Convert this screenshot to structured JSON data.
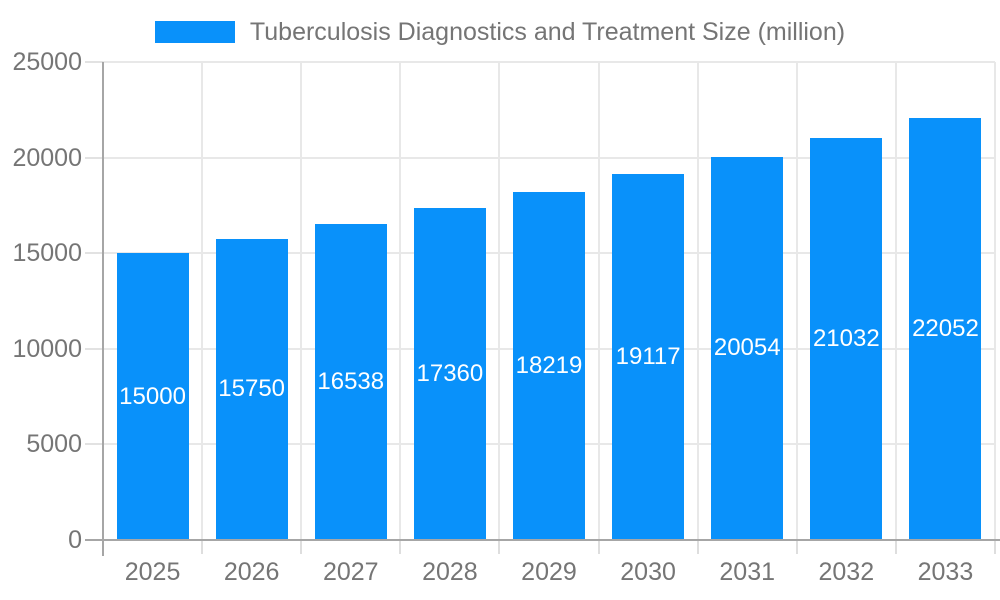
{
  "legend": {
    "label": "Tuberculosis Diagnostics and Treatment Size (million)",
    "swatch_color": "#0991fa"
  },
  "chart_data": {
    "type": "bar",
    "title": "Tuberculosis Diagnostics and Treatment Size (million)",
    "categories": [
      "2025",
      "2026",
      "2027",
      "2028",
      "2029",
      "2030",
      "2031",
      "2032",
      "2033"
    ],
    "values": [
      15000,
      15750,
      16538,
      17360,
      18219,
      19117,
      20054,
      21032,
      22052
    ],
    "series": [
      {
        "name": "Tuberculosis Diagnostics and Treatment Size (million)",
        "values": [
          15000,
          15750,
          16538,
          17360,
          18219,
          19117,
          20054,
          21032,
          22052
        ]
      }
    ],
    "xlabel": "",
    "ylabel": "",
    "ylim": [
      0,
      25000
    ],
    "yticks": [
      0,
      5000,
      10000,
      15000,
      20000,
      25000
    ],
    "grid": true,
    "legend_position": "top",
    "value_labels": "centered-inside-bars",
    "bar_color": "#0991fa",
    "value_label_color": "#ffffff"
  },
  "colors": {
    "bar": "#0991fa",
    "background": "#ffffff",
    "gridline": "#e8e8e8",
    "axis_line": "#a6a6a6",
    "tick_text": "#757575",
    "legend_text": "#757575",
    "bar_value_text": "#ffffff"
  }
}
